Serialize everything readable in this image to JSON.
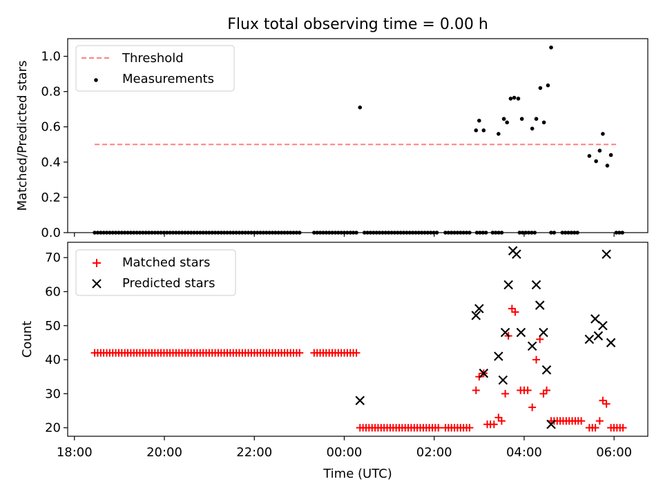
{
  "title": "Flux total observing time = 0.00 h",
  "colors": {
    "threshold": "#ff7f7f",
    "measurements": "#000000",
    "matched": "#ff0000",
    "predicted": "#000000"
  },
  "chart_data": [
    {
      "type": "scatter",
      "ylabel": "Matched/Predicted stars",
      "xlabel": "",
      "ylim": [
        0,
        1.1
      ],
      "yticks": [
        "0.0",
        "0.2",
        "0.4",
        "0.6",
        "0.8",
        "1.0"
      ],
      "yticks_values": [
        0,
        0.2,
        0.4,
        0.6,
        0.8,
        1.0
      ],
      "legend": [
        "Threshold",
        "Measurements"
      ],
      "legend_position": "upper-left",
      "threshold": {
        "name": "Threshold",
        "y": 0.5,
        "x_start": 18.45,
        "x_end": 30.05,
        "style": "dashed"
      },
      "measurements_name": "Measurements",
      "measurements_zero_ranges": [
        [
          18.45,
          23.05
        ],
        [
          23.33,
          23.75
        ],
        [
          23.8,
          24.3
        ],
        [
          24.45,
          26.1
        ],
        [
          26.25,
          26.85
        ],
        [
          26.95,
          27.2
        ],
        [
          27.3,
          27.55
        ],
        [
          27.9,
          28.3
        ],
        [
          28.6,
          28.72
        ],
        [
          28.85,
          29.2
        ],
        [
          30.05,
          30.2
        ]
      ],
      "measurements_zero_step": 0.067,
      "measurements_points": [
        [
          24.35,
          0.71
        ],
        [
          26.93,
          0.58
        ],
        [
          27.0,
          0.635
        ],
        [
          27.1,
          0.58
        ],
        [
          27.43,
          0.56
        ],
        [
          27.55,
          0.645
        ],
        [
          27.62,
          0.625
        ],
        [
          27.7,
          0.76
        ],
        [
          27.78,
          0.765
        ],
        [
          27.87,
          0.76
        ],
        [
          27.95,
          0.645
        ],
        [
          28.18,
          0.59
        ],
        [
          28.27,
          0.645
        ],
        [
          28.36,
          0.82
        ],
        [
          28.44,
          0.625
        ],
        [
          28.53,
          0.835
        ],
        [
          28.6,
          1.05
        ],
        [
          29.45,
          0.435
        ],
        [
          29.6,
          0.405
        ],
        [
          29.68,
          0.465
        ],
        [
          29.75,
          0.56
        ],
        [
          29.85,
          0.38
        ],
        [
          29.93,
          0.44
        ]
      ]
    },
    {
      "type": "scatter",
      "ylabel": "Count",
      "xlabel": "Time (UTC)",
      "ylim": [
        17.5,
        74.5
      ],
      "yticks": [
        "20",
        "30",
        "40",
        "50",
        "60",
        "70"
      ],
      "yticks_values": [
        20,
        30,
        40,
        50,
        60,
        70
      ],
      "xlim": [
        17.85,
        30.75
      ],
      "xticks": [
        "18:00",
        "20:00",
        "22:00",
        "00:00",
        "02:00",
        "04:00",
        "06:00"
      ],
      "xticks_values": [
        18,
        20,
        22,
        24,
        26,
        28,
        30
      ],
      "legend": [
        "Matched stars",
        "Predicted stars"
      ],
      "legend_position": "upper-left",
      "series": [
        {
          "name": "Matched stars",
          "marker": "plus",
          "ranges": [
            {
              "x": [
                18.45,
                23.05
              ],
              "y": 42
            },
            {
              "x": [
                23.33,
                23.75
              ],
              "y": 42
            },
            {
              "x": [
                23.8,
                24.3
              ],
              "y": 42
            },
            {
              "x": [
                24.35,
                26.1
              ],
              "y": 20
            },
            {
              "x": [
                26.25,
                26.85
              ],
              "y": 20
            },
            {
              "x": [
                28.6,
                29.3
              ],
              "y": 22
            },
            {
              "x": [
                29.45,
                29.6
              ],
              "y": 20
            },
            {
              "x": [
                29.93,
                30.2
              ],
              "y": 20
            }
          ],
          "range_step": 0.067,
          "points": [
            [
              26.93,
              31
            ],
            [
              27.0,
              35
            ],
            [
              27.1,
              36
            ],
            [
              27.18,
              21
            ],
            [
              27.25,
              21
            ],
            [
              27.33,
              21
            ],
            [
              27.43,
              23
            ],
            [
              27.5,
              22
            ],
            [
              27.58,
              30
            ],
            [
              27.65,
              47
            ],
            [
              27.73,
              55
            ],
            [
              27.8,
              54
            ],
            [
              27.92,
              31
            ],
            [
              28.0,
              31
            ],
            [
              28.08,
              31
            ],
            [
              28.18,
              26
            ],
            [
              28.27,
              40
            ],
            [
              28.35,
              46
            ],
            [
              28.43,
              30
            ],
            [
              28.5,
              31
            ],
            [
              29.68,
              22
            ],
            [
              29.75,
              28
            ],
            [
              29.83,
              27
            ]
          ]
        },
        {
          "name": "Predicted stars",
          "marker": "x",
          "points": [
            [
              24.35,
              28
            ],
            [
              26.93,
              53
            ],
            [
              27.0,
              55
            ],
            [
              27.1,
              36
            ],
            [
              27.43,
              41
            ],
            [
              27.53,
              34
            ],
            [
              27.58,
              48
            ],
            [
              27.65,
              62
            ],
            [
              27.75,
              72
            ],
            [
              27.83,
              71
            ],
            [
              27.93,
              48
            ],
            [
              28.18,
              44
            ],
            [
              28.27,
              62
            ],
            [
              28.35,
              56
            ],
            [
              28.43,
              48
            ],
            [
              28.5,
              37
            ],
            [
              28.6,
              21
            ],
            [
              29.45,
              46
            ],
            [
              29.58,
              52
            ],
            [
              29.65,
              47
            ],
            [
              29.75,
              50
            ],
            [
              29.83,
              71
            ],
            [
              29.93,
              45
            ]
          ]
        }
      ]
    }
  ]
}
